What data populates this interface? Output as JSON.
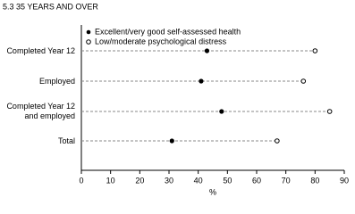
{
  "chart_data": {
    "type": "dot",
    "title": "5.3  35 YEARS AND OVER",
    "categories": [
      "Completed Year 12",
      "Employed",
      "Completed Year 12 and employed",
      "Total"
    ],
    "series": [
      {
        "name": "Excellent/very good self-assessed health",
        "color": "#000000",
        "values": [
          43,
          41,
          48,
          31
        ]
      },
      {
        "name": "Low/moderate psychological distress",
        "color": "#000000",
        "values": [
          80,
          76,
          85,
          67
        ]
      }
    ],
    "xlabel": "%",
    "xlim": [
      0,
      90
    ],
    "xticks": [
      0,
      10,
      20,
      30,
      40,
      50,
      60,
      70,
      80,
      90
    ]
  }
}
